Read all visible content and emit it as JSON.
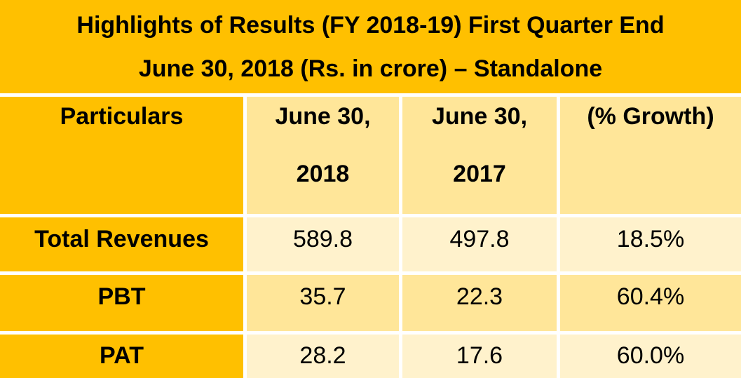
{
  "title": {
    "line1": "Highlights of Results (FY 2018-19) First Quarter End",
    "line2": "June 30, 2018 (Rs. in crore) – Standalone"
  },
  "table": {
    "headers": [
      {
        "line1": "Particulars",
        "line2": ""
      },
      {
        "line1": "June 30,",
        "line2": "2018"
      },
      {
        "line1": "June 30,",
        "line2": "2017"
      },
      {
        "line1": "(% Growth)",
        "line2": ""
      }
    ],
    "rows": [
      {
        "label": "Total Revenues",
        "values": [
          "589.8",
          "497.8",
          "18.5%"
        ]
      },
      {
        "label": "PBT",
        "values": [
          "35.7",
          "22.3",
          "60.4%"
        ]
      },
      {
        "label": "PAT",
        "values": [
          "28.2",
          "17.6",
          "60.0%"
        ]
      }
    ]
  },
  "colors": {
    "header_band": "#ffc000",
    "header_cell": "#ffe699",
    "row_dark": "#ffe699",
    "row_light": "#fff2cc",
    "grid": "#ffffff"
  }
}
